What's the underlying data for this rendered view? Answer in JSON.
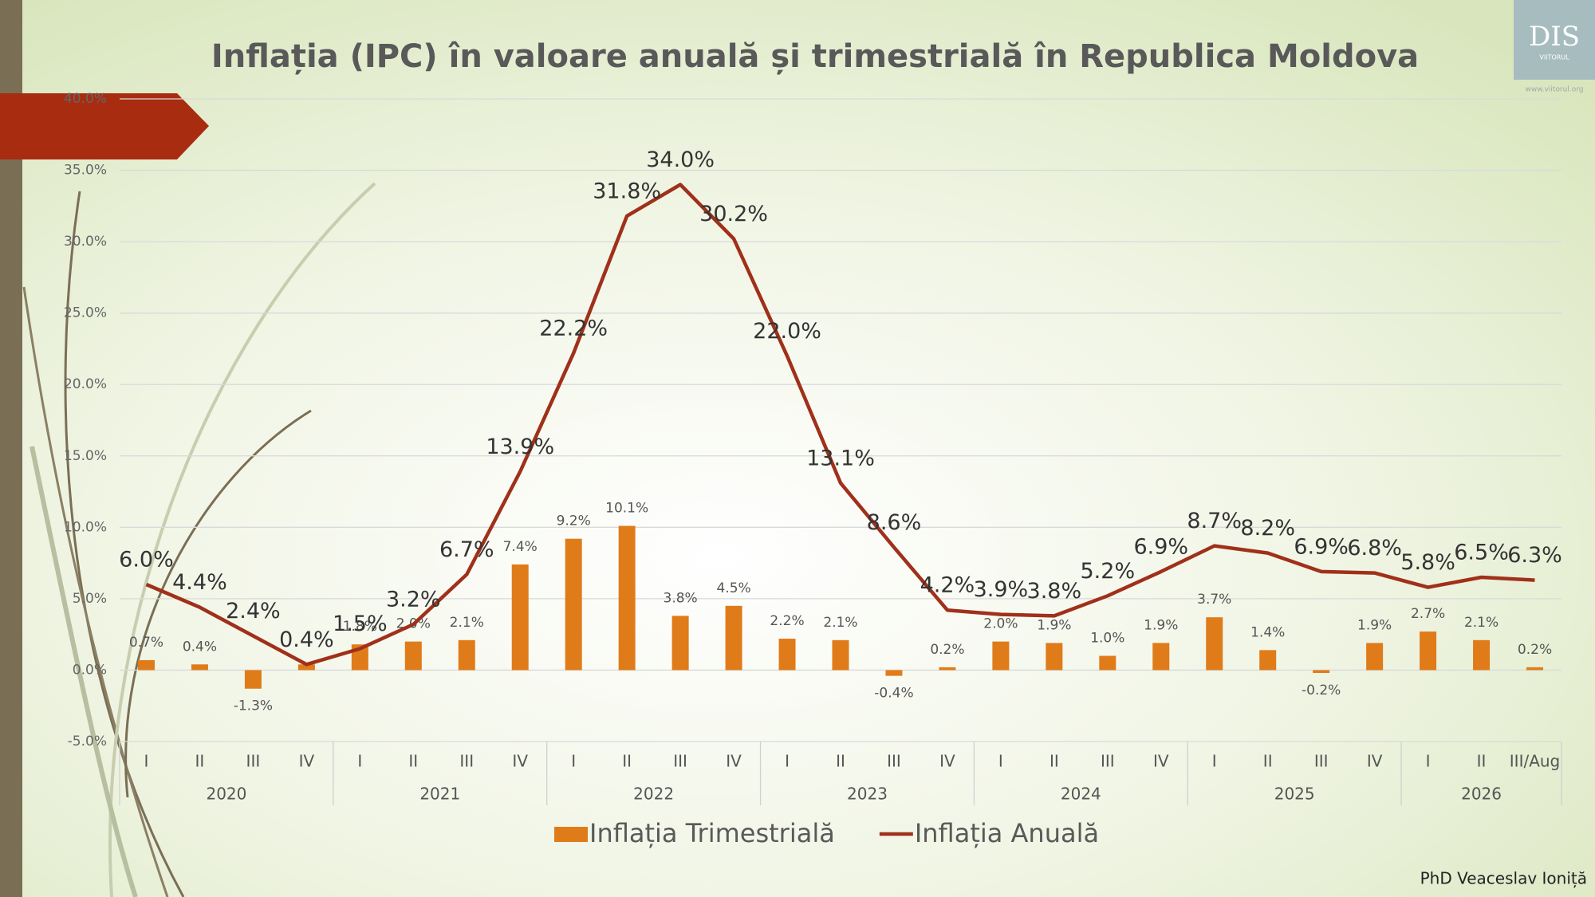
{
  "chart_data": {
    "type": "bar-line",
    "title": "Inflația (IPC) în valoare anuală și trimestrială în Republica Moldova",
    "categories": [
      "I",
      "II",
      "III",
      "IV",
      "I",
      "II",
      "III",
      "IV",
      "I",
      "II",
      "III",
      "IV",
      "I",
      "II",
      "III",
      "IV",
      "I",
      "II",
      "III",
      "IV",
      "I",
      "II",
      "III",
      "IV",
      "I",
      "II",
      "III/Aug"
    ],
    "groups": [
      {
        "label": "2020",
        "span": 4
      },
      {
        "label": "2021",
        "span": 4
      },
      {
        "label": "2022",
        "span": 4
      },
      {
        "label": "2023",
        "span": 4
      },
      {
        "label": "2024",
        "span": 4
      },
      {
        "label": "2025",
        "span": 4
      },
      {
        "label": "2026",
        "span": 3
      }
    ],
    "series": [
      {
        "name": "Inflația Trimestrială",
        "type": "bar",
        "color": "#e07b1a",
        "values": [
          0.7,
          0.4,
          -1.3,
          0.4,
          1.8,
          2.0,
          2.1,
          7.4,
          9.2,
          10.1,
          3.8,
          4.5,
          2.2,
          2.1,
          -0.4,
          0.2,
          2.0,
          1.9,
          1.0,
          1.9,
          3.7,
          1.4,
          -0.2,
          1.9,
          2.7,
          2.1,
          0.2
        ],
        "value_labels": [
          "0.7%",
          "0.4%",
          "-1.3%",
          null,
          "1.8%",
          "2.0%",
          "2.1%",
          "7.4%",
          "9.2%",
          "10.1%",
          "3.8%",
          "4.5%",
          "2.2%",
          "2.1%",
          "-0.4%",
          "0.2%",
          "2.0%",
          "1.9%",
          "1.0%",
          "1.9%",
          "3.7%",
          "1.4%",
          "-0.2%",
          "1.9%",
          "2.7%",
          "2.1%",
          "0.2%"
        ]
      },
      {
        "name": "Inflația Anuală",
        "type": "line",
        "color": "#a0301a",
        "values": [
          6.0,
          4.4,
          2.4,
          0.4,
          1.5,
          3.2,
          6.7,
          13.9,
          22.2,
          31.8,
          34.0,
          30.2,
          22.0,
          13.1,
          8.6,
          4.2,
          3.9,
          3.8,
          5.2,
          6.9,
          8.7,
          8.2,
          6.9,
          6.8,
          5.8,
          6.5,
          6.3
        ],
        "value_labels": [
          "6.0%",
          "4.4%",
          "2.4%",
          "0.4%",
          "1.5%",
          "3.2%",
          "6.7%",
          "13.9%",
          "22.2%",
          "31.8%",
          "34.0%",
          "30.2%",
          "22.0%",
          "13.1%",
          "8.6%",
          "4.2%",
          "3.9%",
          "3.8%",
          "5.2%",
          "6.9%",
          "8.7%",
          "8.2%",
          "6.9%",
          "6.8%",
          "5.8%",
          "6.5%",
          "6.3%"
        ]
      }
    ],
    "ylim": [
      -5,
      40
    ],
    "yticks": [
      {
        "value": -5,
        "label": "-5.0%"
      },
      {
        "value": 0,
        "label": "0.0%"
      },
      {
        "value": 5,
        "label": "5.0%"
      },
      {
        "value": 10,
        "label": "10.0%"
      },
      {
        "value": 15,
        "label": "15.0%"
      },
      {
        "value": 20,
        "label": "20.0%"
      },
      {
        "value": 25,
        "label": "25.0%"
      },
      {
        "value": 30,
        "label": "30.0%"
      },
      {
        "value": 35,
        "label": "35.0%"
      },
      {
        "value": 40,
        "label": "40.0%"
      }
    ],
    "grid": true,
    "legend": "bottom"
  },
  "author": "PhD Veaceslav Ioniță",
  "logo": {
    "name": "DIS",
    "subtitle": "VIITORUL",
    "url": "www.viitorul.org"
  }
}
